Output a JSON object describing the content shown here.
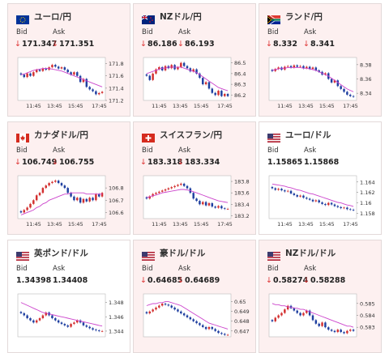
{
  "colors": {
    "down_card_bg": "#fdf0f0",
    "flat_card_bg": "#ffffff",
    "arrow_down": "#dd3333",
    "candle_up": "#d32f2f",
    "candle_down": "#1f3fa0",
    "ma_line": "#cc44cc"
  },
  "labels": {
    "bid": "Bid",
    "ask": "Ask"
  },
  "cards": [
    {
      "name": "ユーロ/円",
      "flag": "eu-flag",
      "trend": "down",
      "bid": "171.347",
      "ask": "171.351"
    },
    {
      "name": "NZドル/円",
      "flag": "nz-flag",
      "trend": "down",
      "bid": "86.186",
      "ask": "86.193"
    },
    {
      "name": "ランド/円",
      "flag": "za-flag",
      "trend": "down",
      "bid": "8.332",
      "ask": "8.341"
    },
    {
      "name": "カナダドル/円",
      "flag": "ca-flag",
      "trend": "down",
      "bid": "106.749",
      "ask": "106.755"
    },
    {
      "name": "スイスフラン/円",
      "flag": "ch-flag",
      "trend": "down",
      "bid": "183.318",
      "ask": "183.334"
    },
    {
      "name": "ユーロ/ドル",
      "flag": "eu-flag",
      "trend": "flat",
      "bid": "1.15865",
      "ask": "1.15868"
    },
    {
      "name": "英ポンド/ドル",
      "flag": "gb-flag",
      "trend": "flat",
      "bid": "1.34398",
      "ask": "1.34408"
    },
    {
      "name": "豪ドル/ドル",
      "flag": "au-flag",
      "trend": "down",
      "bid": "0.64685",
      "ask": "0.64689"
    },
    {
      "name": "NZドル/ドル",
      "flag": "nz-flag",
      "trend": "down",
      "bid": "0.58274",
      "ask": "0.58288"
    }
  ],
  "chart_data": [
    {
      "type": "candlestick",
      "x_ticks": [
        "11:45",
        "13:45",
        "15:45",
        "17:45"
      ],
      "y_ticks": [
        "171.8",
        "171.6",
        "171.4",
        "171.2"
      ],
      "ylim": [
        171.2,
        171.9
      ],
      "close": [
        171.62,
        171.58,
        171.64,
        171.6,
        171.66,
        171.7,
        171.68,
        171.72,
        171.7,
        171.74,
        171.78,
        171.75,
        171.72,
        171.74,
        171.7,
        171.66,
        171.62,
        171.66,
        171.6,
        171.5,
        171.55,
        171.42,
        171.38,
        171.35,
        171.3,
        171.32,
        171.34
      ],
      "ma": [
        171.62,
        171.63,
        171.65,
        171.67,
        171.69,
        171.7,
        171.71,
        171.72,
        171.72,
        171.72,
        171.71,
        171.7,
        171.69,
        171.68,
        171.66,
        171.64,
        171.62,
        171.6,
        171.58,
        171.56,
        171.54,
        171.52,
        171.5,
        171.48,
        171.46,
        171.44,
        171.42
      ]
    },
    {
      "type": "candlestick",
      "x_ticks": [
        "11:45",
        "13:45",
        "15:45",
        "17:45"
      ],
      "y_ticks": [
        "86.5",
        "86.4",
        "86.3",
        "86.2"
      ],
      "ylim": [
        86.15,
        86.55
      ],
      "close": [
        86.38,
        86.34,
        86.4,
        86.44,
        86.46,
        86.43,
        86.47,
        86.45,
        86.48,
        86.44,
        86.46,
        86.5,
        86.47,
        86.45,
        86.42,
        86.44,
        86.4,
        86.36,
        86.3,
        86.32,
        86.26,
        86.22,
        86.2,
        86.24,
        86.19,
        86.21,
        86.19
      ],
      "ma": [
        86.4,
        86.41,
        86.42,
        86.43,
        86.44,
        86.45,
        86.45,
        86.46,
        86.46,
        86.46,
        86.46,
        86.46,
        86.45,
        86.44,
        86.43,
        86.42,
        86.41,
        86.39,
        86.37,
        86.35,
        86.33,
        86.31,
        86.29,
        86.27,
        86.26,
        86.25,
        86.24
      ]
    },
    {
      "type": "candlestick",
      "x_ticks": [
        "11:45",
        "13:45",
        "15:45",
        "17:45"
      ],
      "y_ticks": [
        "8.38",
        "8.36",
        "8.34"
      ],
      "ylim": [
        8.33,
        8.39
      ],
      "close": [
        8.371,
        8.374,
        8.376,
        8.373,
        8.377,
        8.378,
        8.376,
        8.379,
        8.377,
        8.378,
        8.375,
        8.377,
        8.374,
        8.376,
        8.372,
        8.37,
        8.366,
        8.368,
        8.36,
        8.355,
        8.358,
        8.35,
        8.346,
        8.342,
        8.338,
        8.336,
        8.335
      ],
      "ma": [
        8.372,
        8.373,
        8.374,
        8.375,
        8.375,
        8.376,
        8.376,
        8.376,
        8.376,
        8.376,
        8.375,
        8.375,
        8.374,
        8.373,
        8.372,
        8.37,
        8.368,
        8.366,
        8.364,
        8.361,
        8.358,
        8.355,
        8.352,
        8.349,
        8.346,
        8.344,
        8.342
      ]
    },
    {
      "type": "candlestick",
      "x_ticks": [
        "11:45",
        "13:45",
        "15:45",
        "17:45"
      ],
      "y_ticks": [
        "106.8",
        "106.7",
        "106.6"
      ],
      "ylim": [
        106.55,
        106.9
      ],
      "close": [
        106.6,
        106.62,
        106.64,
        106.67,
        106.7,
        106.74,
        106.76,
        106.8,
        106.82,
        106.84,
        106.85,
        106.86,
        106.84,
        106.82,
        106.8,
        106.76,
        106.73,
        106.7,
        106.72,
        106.68,
        106.71,
        106.69,
        106.72,
        106.7,
        106.75,
        106.73,
        106.76
      ],
      "ma": [
        106.58,
        106.59,
        106.6,
        106.61,
        106.62,
        106.64,
        106.65,
        106.67,
        106.68,
        106.7,
        106.71,
        106.72,
        106.73,
        106.74,
        106.75,
        106.75,
        106.76,
        106.76,
        106.76,
        106.76,
        106.76,
        106.75,
        106.75,
        106.75,
        106.75,
        106.75,
        106.75
      ]
    },
    {
      "type": "candlestick",
      "x_ticks": [
        "11:45",
        "13:45",
        "15:45",
        "17:45"
      ],
      "y_ticks": [
        "183.8",
        "183.6",
        "183.4",
        "183.2"
      ],
      "ylim": [
        183.15,
        183.9
      ],
      "close": [
        183.5,
        183.54,
        183.58,
        183.6,
        183.62,
        183.64,
        183.66,
        183.68,
        183.7,
        183.72,
        183.74,
        183.76,
        183.72,
        183.68,
        183.6,
        183.5,
        183.46,
        183.4,
        183.44,
        183.38,
        183.42,
        183.36,
        183.34,
        183.37,
        183.33,
        183.32,
        183.32
      ],
      "ma": [
        183.52,
        183.53,
        183.55,
        183.56,
        183.58,
        183.6,
        183.61,
        183.62,
        183.63,
        183.64,
        183.65,
        183.66,
        183.66,
        183.65,
        183.64,
        183.62,
        183.6,
        183.58,
        183.56,
        183.54,
        183.52,
        183.5,
        183.48,
        183.46,
        183.45,
        183.44,
        183.43
      ]
    },
    {
      "type": "candlestick",
      "x_ticks": [
        "11:45",
        "13:45",
        "15:45",
        "17:45"
      ],
      "y_ticks": [
        "1.164",
        "1.162",
        "1.16",
        "1.158"
      ],
      "ylim": [
        1.157,
        1.1652
      ],
      "close": [
        1.1628,
        1.1625,
        1.1627,
        1.1624,
        1.1622,
        1.1623,
        1.1618,
        1.1615,
        1.1612,
        1.1614,
        1.161,
        1.1608,
        1.1606,
        1.1603,
        1.1605,
        1.1601,
        1.1598,
        1.1596,
        1.16,
        1.1597,
        1.1594,
        1.1592,
        1.159,
        1.1591,
        1.1588,
        1.1587,
        1.1586
      ],
      "ma": [
        1.1636,
        1.1635,
        1.1634,
        1.1633,
        1.1632,
        1.163,
        1.1629,
        1.1627,
        1.1625,
        1.1624,
        1.1622,
        1.162,
        1.1618,
        1.1617,
        1.1615,
        1.1613,
        1.1611,
        1.1609,
        1.1607,
        1.1605,
        1.1603,
        1.1601,
        1.16,
        1.1598,
        1.1596,
        1.1595,
        1.1593
      ]
    },
    {
      "type": "candlestick",
      "x_ticks": [],
      "y_ticks": [
        "1.348",
        "1.346",
        "1.344"
      ],
      "ylim": [
        1.3432,
        1.3492
      ],
      "close": [
        1.3465,
        1.3462,
        1.3458,
        1.3455,
        1.3452,
        1.3455,
        1.3458,
        1.3462,
        1.3466,
        1.3462,
        1.3458,
        1.3455,
        1.3452,
        1.345,
        1.3448,
        1.3446,
        1.345,
        1.3452,
        1.3455,
        1.3452,
        1.3448,
        1.3446,
        1.3444,
        1.3442,
        1.3441,
        1.344,
        1.344
      ],
      "ma": [
        1.348,
        1.3478,
        1.3476,
        1.3474,
        1.3472,
        1.347,
        1.3468,
        1.3466,
        1.3465,
        1.3464,
        1.3463,
        1.3462,
        1.3461,
        1.346,
        1.3459,
        1.3458,
        1.3457,
        1.3456,
        1.3455,
        1.3454,
        1.3453,
        1.3452,
        1.3451,
        1.345,
        1.3449,
        1.3448,
        1.3447
      ]
    },
    {
      "type": "candlestick",
      "x_ticks": [],
      "y_ticks": [
        "0.65",
        "0.649",
        "0.648",
        "0.647"
      ],
      "ylim": [
        0.6464,
        0.6508
      ],
      "close": [
        0.6488,
        0.649,
        0.6492,
        0.6494,
        0.6496,
        0.6498,
        0.6497,
        0.6496,
        0.6494,
        0.6492,
        0.649,
        0.6488,
        0.6486,
        0.6484,
        0.6482,
        0.648,
        0.6478,
        0.6476,
        0.6474,
        0.6472,
        0.6474,
        0.6472,
        0.647,
        0.6468,
        0.6467,
        0.6466,
        0.6466
      ],
      "ma": [
        0.6496,
        0.6497,
        0.6498,
        0.6498,
        0.6499,
        0.6499,
        0.65,
        0.65,
        0.6499,
        0.6498,
        0.6497,
        0.6496,
        0.6494,
        0.6492,
        0.649,
        0.6488,
        0.6486,
        0.6484,
        0.6482,
        0.648,
        0.6478,
        0.6477,
        0.6476,
        0.6475,
        0.6474,
        0.6473,
        0.6472
      ]
    },
    {
      "type": "candlestick",
      "x_ticks": [],
      "y_ticks": [
        "0.585",
        "0.584",
        "0.583"
      ],
      "ylim": [
        0.5822,
        0.5858
      ],
      "close": [
        0.5835,
        0.5838,
        0.584,
        0.5842,
        0.5845,
        0.5848,
        0.5846,
        0.5844,
        0.5842,
        0.584,
        0.5842,
        0.5844,
        0.584,
        0.5836,
        0.5833,
        0.5831,
        0.5834,
        0.583,
        0.5828,
        0.5827,
        0.5826,
        0.5828,
        0.5826,
        0.5825,
        0.5827,
        0.5828,
        0.5827
      ],
      "ma": [
        0.585,
        0.5849,
        0.5849,
        0.5848,
        0.5848,
        0.5847,
        0.5847,
        0.5846,
        0.5846,
        0.5845,
        0.5845,
        0.5844,
        0.5843,
        0.5842,
        0.5841,
        0.584,
        0.5839,
        0.5838,
        0.5837,
        0.5836,
        0.5835,
        0.5834,
        0.5833,
        0.5832,
        0.5831,
        0.5831,
        0.583
      ]
    }
  ]
}
